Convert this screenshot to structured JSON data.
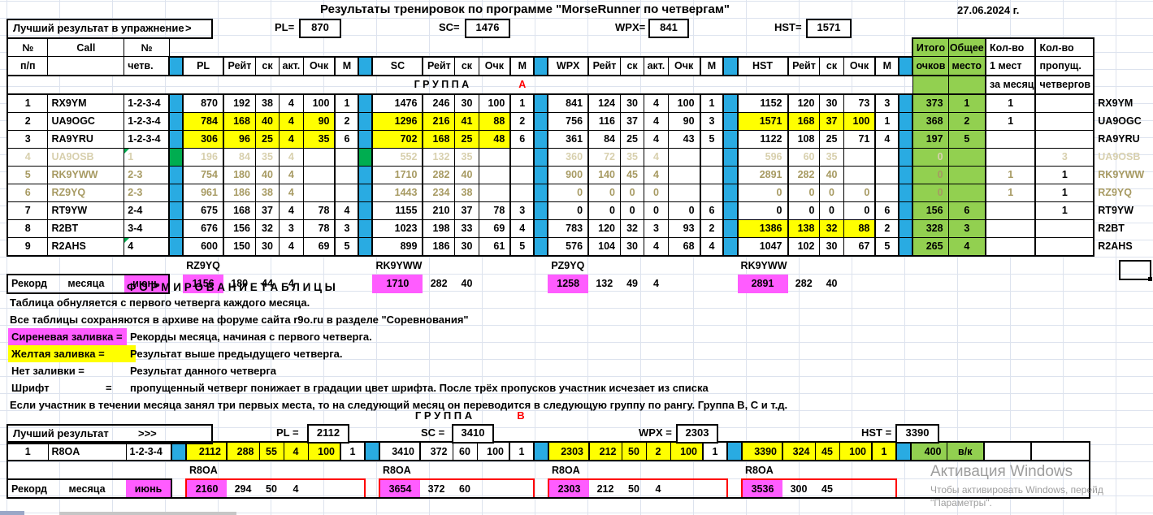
{
  "app": {
    "title": "Результаты тренировок по программе \"MorseRunner по четвергам\"",
    "date": "27.06.2024 г."
  },
  "colors": {
    "separator_cyan": "#29abe2",
    "header_green": "#92d050",
    "marker_green": "#00ad50",
    "highlight_yellow": "#ffff00",
    "record_magenta": "#ff5cff",
    "faded_text_level1": "#a79a62",
    "faded_text_level2": "#d8d0ae",
    "group_letter_red": "#ff0000"
  },
  "groupA": {
    "group_word": "Г Р У П П А",
    "group_letter": "А",
    "best": {
      "label": "Лучший результат  в упражнение",
      "arrow": ">",
      "pl_label": "PL=",
      "pl": "870",
      "sc_label": "SC=",
      "sc": "1476",
      "wpx_label": "WPX=",
      "wpx": "841",
      "hst_label": "HST=",
      "hst": "1571"
    },
    "header": {
      "num_top": "№",
      "num_bot": "п/п",
      "call": "Call",
      "chetv_top": "№",
      "chetv_bot": "четв.",
      "pl": [
        "PL",
        "Рейт",
        "ск",
        "акт.",
        "Очк",
        "М"
      ],
      "sc": [
        "SC",
        "Рейт",
        "ск",
        "Очк",
        "М"
      ],
      "wpx": [
        "WPX",
        "Рейт",
        "ск",
        "акт.",
        "Очк",
        "М"
      ],
      "hst": [
        "HST",
        "Рейт",
        "ск",
        "Очк",
        "М"
      ],
      "total_top": "Итого",
      "total_bot": "очков",
      "place_top": "Общее",
      "place_bot": "место",
      "firsts": [
        "Кол-во",
        "1 мест",
        "за месяц"
      ],
      "missed": [
        "Кол-во",
        "пропущ.",
        "четвергов"
      ]
    },
    "rows": [
      {
        "n": "1",
        "call": "RX9YM",
        "chetv": "1-2-3-4",
        "fade": 0,
        "note": false,
        "green_sep": false,
        "pl": {
          "v": [
            "870",
            "192",
            "38",
            "4",
            "100"
          ],
          "m": "1",
          "yl": 0
        },
        "sc": {
          "v": [
            "1476",
            "246",
            "30",
            "100"
          ],
          "m": "1",
          "yl": 0
        },
        "wpx": {
          "v": [
            "841",
            "124",
            "30",
            "4",
            "100"
          ],
          "m": "1",
          "yl": 0
        },
        "hst": {
          "v": [
            "1152",
            "120",
            "30",
            "73"
          ],
          "m": "3",
          "yl": 0
        },
        "total": "373",
        "place": "1",
        "firsts": "1",
        "missed": "",
        "missed_black": false,
        "call2": "RX9YM"
      },
      {
        "n": "2",
        "call": "UA9OGC",
        "chetv": "1-2-3-4",
        "fade": 0,
        "note": false,
        "green_sep": false,
        "pl": {
          "v": [
            "784",
            "168",
            "40",
            "4",
            "90"
          ],
          "m": "2",
          "yl": 5
        },
        "sc": {
          "v": [
            "1296",
            "216",
            "41",
            "88"
          ],
          "m": "2",
          "yl": 4
        },
        "wpx": {
          "v": [
            "756",
            "116",
            "37",
            "4",
            "90"
          ],
          "m": "3",
          "yl": 0
        },
        "hst": {
          "v": [
            "1571",
            "168",
            "37",
            "100"
          ],
          "m": "1",
          "yl": 4
        },
        "total": "368",
        "place": "2",
        "firsts": "1",
        "missed": "",
        "missed_black": false,
        "call2": "UA9OGC"
      },
      {
        "n": "3",
        "call": "RA9YRU",
        "chetv": "1-2-3-4",
        "fade": 0,
        "note": false,
        "green_sep": false,
        "pl": {
          "v": [
            "306",
            "96",
            "25",
            "4",
            "35"
          ],
          "m": "6",
          "yl": 5
        },
        "sc": {
          "v": [
            "702",
            "168",
            "25",
            "48"
          ],
          "m": "6",
          "yl": 4
        },
        "wpx": {
          "v": [
            "361",
            "84",
            "25",
            "4",
            "43"
          ],
          "m": "5",
          "yl": 0
        },
        "hst": {
          "v": [
            "1122",
            "108",
            "25",
            "71"
          ],
          "m": "4",
          "yl": 0
        },
        "total": "197",
        "place": "5",
        "firsts": "",
        "missed": "",
        "missed_black": false,
        "call2": "RA9YRU"
      },
      {
        "n": "4",
        "call": "UA9OSB",
        "chetv": "1",
        "fade": 2,
        "note": true,
        "green_sep": true,
        "pl": {
          "v": [
            "196",
            "84",
            "35",
            "4",
            ""
          ],
          "m": "",
          "yl": 0
        },
        "sc": {
          "v": [
            "552",
            "132",
            "35",
            ""
          ],
          "m": "",
          "yl": 0
        },
        "wpx": {
          "v": [
            "360",
            "72",
            "35",
            "4",
            ""
          ],
          "m": "",
          "yl": 0
        },
        "hst": {
          "v": [
            "596",
            "60",
            "35",
            ""
          ],
          "m": "",
          "yl": 0
        },
        "total": "0",
        "place": "",
        "firsts": "",
        "missed": "3",
        "missed_black": false,
        "call2": "UA9OSB"
      },
      {
        "n": "5",
        "call": "RK9YWW",
        "chetv": "2-3",
        "fade": 1,
        "note": false,
        "green_sep": false,
        "pl": {
          "v": [
            "754",
            "180",
            "40",
            "4",
            ""
          ],
          "m": "",
          "yl": 0
        },
        "sc": {
          "v": [
            "1710",
            "282",
            "40",
            ""
          ],
          "m": "",
          "yl": 0
        },
        "wpx": {
          "v": [
            "900",
            "140",
            "45",
            "4",
            ""
          ],
          "m": "",
          "yl": 0
        },
        "hst": {
          "v": [
            "2891",
            "282",
            "40",
            ""
          ],
          "m": "",
          "yl": 0
        },
        "total": "0",
        "place": "",
        "firsts": "1",
        "missed": "1",
        "missed_black": true,
        "call2": "RK9YWW"
      },
      {
        "n": "6",
        "call": "RZ9YQ",
        "chetv": "2-3",
        "fade": 1,
        "note": false,
        "green_sep": false,
        "pl": {
          "v": [
            "961",
            "186",
            "38",
            "4",
            ""
          ],
          "m": "",
          "yl": 0
        },
        "sc": {
          "v": [
            "1443",
            "234",
            "38",
            ""
          ],
          "m": "",
          "yl": 0
        },
        "wpx": {
          "v": [
            "0",
            "0",
            "0",
            "0",
            ""
          ],
          "m": "",
          "yl": 0
        },
        "hst": {
          "v": [
            "0",
            "0",
            "0",
            "0"
          ],
          "m": "",
          "yl": 0
        },
        "total": "0",
        "place": "",
        "firsts": "1",
        "missed": "1",
        "missed_black": true,
        "call2": "RZ9YQ"
      },
      {
        "n": "7",
        "call": "RT9YW",
        "chetv": "2-4",
        "fade": 0,
        "note": false,
        "green_sep": false,
        "pl": {
          "v": [
            "675",
            "168",
            "37",
            "4",
            "78"
          ],
          "m": "4",
          "yl": 0
        },
        "sc": {
          "v": [
            "1155",
            "210",
            "37",
            "78"
          ],
          "m": "3",
          "yl": 0
        },
        "wpx": {
          "v": [
            "0",
            "0",
            "0",
            "0",
            "0"
          ],
          "m": "6",
          "yl": 0
        },
        "hst": {
          "v": [
            "0",
            "0",
            "0",
            "0"
          ],
          "m": "6",
          "yl": 0
        },
        "total": "156",
        "place": "6",
        "firsts": "",
        "missed": "1",
        "missed_black": true,
        "call2": "RT9YW"
      },
      {
        "n": "8",
        "call": "R2BT",
        "chetv": "3-4",
        "fade": 0,
        "note": false,
        "green_sep": false,
        "pl": {
          "v": [
            "676",
            "156",
            "32",
            "3",
            "78"
          ],
          "m": "3",
          "yl": 0
        },
        "sc": {
          "v": [
            "1023",
            "198",
            "33",
            "69"
          ],
          "m": "4",
          "yl": 0
        },
        "wpx": {
          "v": [
            "783",
            "120",
            "32",
            "3",
            "93"
          ],
          "m": "2",
          "yl": 0
        },
        "hst": {
          "v": [
            "1386",
            "138",
            "32",
            "88"
          ],
          "m": "2",
          "yl": 4
        },
        "total": "328",
        "place": "3",
        "firsts": "",
        "missed": "",
        "missed_black": false,
        "call2": "R2BT"
      },
      {
        "n": "9",
        "call": "R2AHS",
        "chetv": "4",
        "fade": 0,
        "note": true,
        "green_sep": false,
        "pl": {
          "v": [
            "600",
            "150",
            "30",
            "4",
            "69"
          ],
          "m": "5",
          "yl": 0
        },
        "sc": {
          "v": [
            "899",
            "186",
            "30",
            "61"
          ],
          "m": "5",
          "yl": 0
        },
        "wpx": {
          "v": [
            "576",
            "104",
            "30",
            "4",
            "68"
          ],
          "m": "4",
          "yl": 0
        },
        "hst": {
          "v": [
            "1047",
            "102",
            "30",
            "67"
          ],
          "m": "5",
          "yl": 0
        },
        "total": "265",
        "place": "4",
        "firsts": "",
        "missed": "",
        "missed_black": false,
        "call2": "R2AHS"
      }
    ],
    "record": {
      "label1": "Рекорд",
      "label2": "месяца",
      "month": "июнь",
      "names": [
        "RZ9YQ",
        "RK9YWW",
        "PZ9YQ",
        "RK9YWW"
      ],
      "pl": [
        "1156",
        "180",
        "44",
        "4"
      ],
      "sc": [
        "1710",
        "282",
        "40"
      ],
      "wpx": [
        "1258",
        "132",
        "49",
        "4"
      ],
      "hst": [
        "2891",
        "282",
        "40"
      ]
    }
  },
  "legend": {
    "form_title": "Ф О Р М И Р О В А Н И Е   Т А Б Л И Ц Ы",
    "lines": [
      {
        "text": "Таблица обнуляется с первого четверга каждого месяца."
      },
      {
        "text": "Все таблицы сохраняются в архиве на форуме сайта r9o.ru  в разделе \"Соревнования\""
      },
      {
        "key": "Сиреневая заливка =",
        "text": "Рекорды месяца, начиная с первого четверга."
      },
      {
        "key": "Желтая заливка  =",
        "text": "Результат выше предыдущего четверга."
      },
      {
        "key": "Нет заливки  =",
        "text": "Результат данного четверга"
      },
      {
        "key": "Шрифт",
        "eq": "=",
        "text": "пропущенный четверг понижает в градации цвет шрифта. После трёх пропусков участник исчезает из списка"
      },
      {
        "text": "Если участник в течении месяца занял три первых места, то на следующий месяц он переводится в следующую группу по рангу. Группа В, С и т.д."
      }
    ]
  },
  "groupB": {
    "group_word": "Г Р У П П А",
    "group_letter": "В",
    "best": {
      "label": "Лучший результат",
      "arrow": ">>>",
      "pl_label": "PL =",
      "pl": "2112",
      "sc_label": "SC =",
      "sc": "3410",
      "wpx_label": "WPX =",
      "wpx": "2303",
      "hst_label": "HST =",
      "hst": "3390"
    },
    "rows": [
      {
        "n": "1",
        "call": "R8OA",
        "chetv": "1-2-3-4",
        "fade": 0,
        "note": false,
        "green_sep": false,
        "pl": {
          "v": [
            "2112",
            "288",
            "55",
            "4",
            "100"
          ],
          "m": "1",
          "yl": 5
        },
        "sc": {
          "v": [
            "3410",
            "372",
            "60",
            "100"
          ],
          "m": "1",
          "yl": 0
        },
        "wpx": {
          "v": [
            "2303",
            "212",
            "50",
            "2",
            "100"
          ],
          "m": "1",
          "yl": 5
        },
        "hst": {
          "v": [
            "3390",
            "324",
            "45",
            "100"
          ],
          "m": "1",
          "yl": 5
        },
        "total": "400",
        "place": "в/к",
        "firsts": "",
        "missed": "",
        "missed_black": false,
        "call2": ""
      }
    ],
    "record": {
      "label1": "Рекорд",
      "label2": "месяца",
      "month": "июнь",
      "names": [
        "R8OA",
        "R8OA",
        "R8OA",
        "R8OA"
      ],
      "pl": [
        "2160",
        "294",
        "50",
        "4"
      ],
      "sc": [
        "3654",
        "372",
        "60"
      ],
      "wpx": [
        "2303",
        "212",
        "50",
        "4"
      ],
      "hst": [
        "3536",
        "300",
        "45"
      ]
    }
  },
  "watermark": {
    "line1": "Активация Windows",
    "line2": "Чтобы активировать Windows, перейд",
    "line3": "\"Параметры\"."
  }
}
